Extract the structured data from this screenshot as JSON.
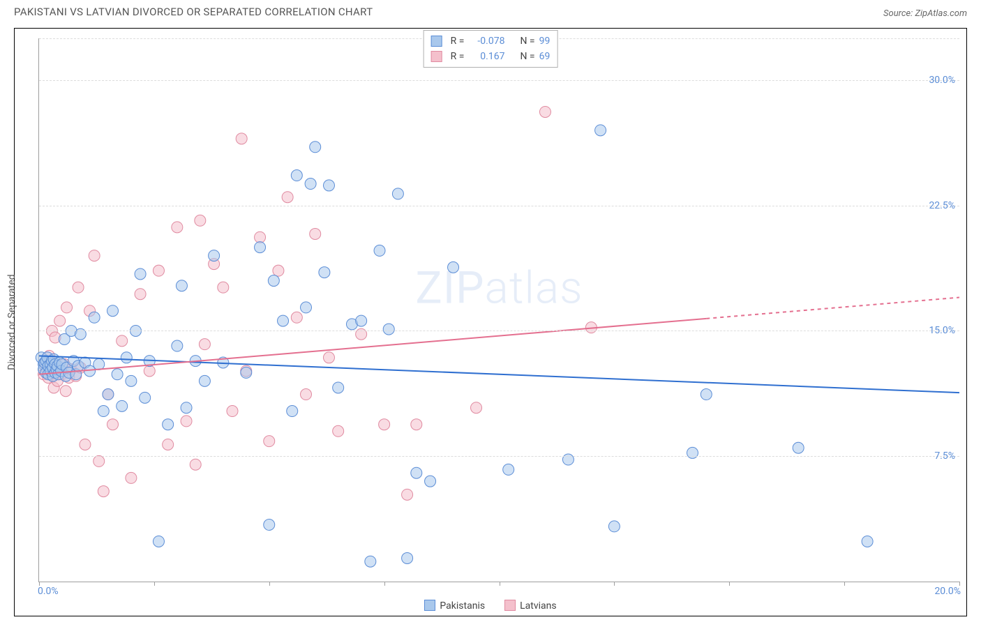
{
  "title": "PAKISTANI VS LATVIAN DIVORCED OR SEPARATED CORRELATION CHART",
  "source_prefix": "Source: ",
  "source_name": "ZipAtlas.com",
  "watermark_a": "ZIP",
  "watermark_b": "atlas",
  "chart": {
    "type": "scatter",
    "ylabel": "Divorced or Separated",
    "xlim": [
      0,
      20
    ],
    "ylim": [
      0,
      32.5
    ],
    "xtick_positions": [
      0,
      2.5,
      5,
      7.5,
      10,
      12.5,
      15,
      17.5,
      20
    ],
    "xlim_labels": {
      "left": "0.0%",
      "right": "20.0%"
    },
    "ytick_positions": [
      7.5,
      15,
      22.5,
      30
    ],
    "ytick_labels": [
      "7.5%",
      "15.0%",
      "22.5%",
      "30.0%"
    ],
    "grid_color": "#dcdcdc",
    "axis_color": "#9e9e9e",
    "background_color": "#ffffff",
    "point_radius": 8,
    "point_opacity": 0.55,
    "line_width": 2,
    "series": [
      {
        "name": "Pakistanis",
        "fill": "#a9c8ec",
        "stroke": "#5b8dd6",
        "line_color": "#2f6fd0",
        "r_label": "R =",
        "n_label": "N =",
        "r": "-0.078",
        "n": "99",
        "trend": {
          "y_at_x0": 13.5,
          "y_at_xmax": 11.3
        },
        "points": [
          [
            0.05,
            13.4
          ],
          [
            0.1,
            13.0
          ],
          [
            0.1,
            12.7
          ],
          [
            0.12,
            13.1
          ],
          [
            0.15,
            13.2
          ],
          [
            0.15,
            12.5
          ],
          [
            0.18,
            13.4
          ],
          [
            0.2,
            12.4
          ],
          [
            0.2,
            12.9
          ],
          [
            0.25,
            13.0
          ],
          [
            0.25,
            12.6
          ],
          [
            0.28,
            13.2
          ],
          [
            0.3,
            12.8
          ],
          [
            0.3,
            12.3
          ],
          [
            0.32,
            13.3
          ],
          [
            0.35,
            12.5
          ],
          [
            0.35,
            13.0
          ],
          [
            0.38,
            12.7
          ],
          [
            0.4,
            12.9
          ],
          [
            0.42,
            12.4
          ],
          [
            0.45,
            13.1
          ],
          [
            0.48,
            12.6
          ],
          [
            0.5,
            13.0
          ],
          [
            0.55,
            14.5
          ],
          [
            0.58,
            12.3
          ],
          [
            0.6,
            12.8
          ],
          [
            0.65,
            12.5
          ],
          [
            0.7,
            15.0
          ],
          [
            0.75,
            13.2
          ],
          [
            0.8,
            12.4
          ],
          [
            0.85,
            12.9
          ],
          [
            0.9,
            14.8
          ],
          [
            1.0,
            13.1
          ],
          [
            1.1,
            12.6
          ],
          [
            1.2,
            15.8
          ],
          [
            1.3,
            13.0
          ],
          [
            1.4,
            10.2
          ],
          [
            1.5,
            11.2
          ],
          [
            1.6,
            16.2
          ],
          [
            1.7,
            12.4
          ],
          [
            1.8,
            10.5
          ],
          [
            1.9,
            13.4
          ],
          [
            2.0,
            12.0
          ],
          [
            2.1,
            15.0
          ],
          [
            2.2,
            18.4
          ],
          [
            2.3,
            11.0
          ],
          [
            2.4,
            13.2
          ],
          [
            2.6,
            2.4
          ],
          [
            2.8,
            9.4
          ],
          [
            3.0,
            14.1
          ],
          [
            3.1,
            17.7
          ],
          [
            3.2,
            10.4
          ],
          [
            3.4,
            13.2
          ],
          [
            3.6,
            12.0
          ],
          [
            3.8,
            19.5
          ],
          [
            4.0,
            13.1
          ],
          [
            4.5,
            12.5
          ],
          [
            4.8,
            20.0
          ],
          [
            5.0,
            3.4
          ],
          [
            5.1,
            18.0
          ],
          [
            5.3,
            15.6
          ],
          [
            5.5,
            10.2
          ],
          [
            5.6,
            24.3
          ],
          [
            5.8,
            16.4
          ],
          [
            5.9,
            23.8
          ],
          [
            6.0,
            26.0
          ],
          [
            6.2,
            18.5
          ],
          [
            6.3,
            23.7
          ],
          [
            6.5,
            11.6
          ],
          [
            6.8,
            15.4
          ],
          [
            7.0,
            15.6
          ],
          [
            7.2,
            1.2
          ],
          [
            7.4,
            19.8
          ],
          [
            7.6,
            15.1
          ],
          [
            7.8,
            23.2
          ],
          [
            8.0,
            1.4
          ],
          [
            8.2,
            6.5
          ],
          [
            8.5,
            6.0
          ],
          [
            9.0,
            18.8
          ],
          [
            10.2,
            6.7
          ],
          [
            11.5,
            7.3
          ],
          [
            12.2,
            27.0
          ],
          [
            12.5,
            3.3
          ],
          [
            14.2,
            7.7
          ],
          [
            14.5,
            11.2
          ],
          [
            16.5,
            8.0
          ],
          [
            18.0,
            2.4
          ]
        ]
      },
      {
        "name": "Latvians",
        "fill": "#f4c0cc",
        "stroke": "#e08aa0",
        "line_color": "#e46f8f",
        "r_label": "R =",
        "n_label": "N =",
        "r": "0.167",
        "n": "69",
        "trend": {
          "y_at_x0": 12.4,
          "y_at_xmax": 17.0
        },
        "trend_dash_after_x": 14.5,
        "points": [
          [
            0.1,
            12.4
          ],
          [
            0.15,
            12.8
          ],
          [
            0.2,
            12.2
          ],
          [
            0.22,
            13.5
          ],
          [
            0.25,
            12.6
          ],
          [
            0.28,
            15.0
          ],
          [
            0.3,
            12.3
          ],
          [
            0.32,
            11.6
          ],
          [
            0.35,
            14.6
          ],
          [
            0.38,
            12.5
          ],
          [
            0.4,
            12.0
          ],
          [
            0.45,
            15.6
          ],
          [
            0.5,
            12.4
          ],
          [
            0.55,
            13.0
          ],
          [
            0.58,
            11.4
          ],
          [
            0.6,
            16.4
          ],
          [
            0.65,
            12.2
          ],
          [
            0.7,
            12.7
          ],
          [
            0.8,
            12.3
          ],
          [
            0.85,
            17.6
          ],
          [
            0.9,
            12.8
          ],
          [
            1.0,
            8.2
          ],
          [
            1.1,
            16.2
          ],
          [
            1.2,
            19.5
          ],
          [
            1.3,
            7.2
          ],
          [
            1.4,
            5.4
          ],
          [
            1.5,
            11.2
          ],
          [
            1.6,
            9.4
          ],
          [
            1.8,
            14.4
          ],
          [
            2.0,
            6.2
          ],
          [
            2.2,
            17.2
          ],
          [
            2.4,
            12.6
          ],
          [
            2.6,
            18.6
          ],
          [
            2.8,
            8.2
          ],
          [
            3.0,
            21.2
          ],
          [
            3.2,
            9.6
          ],
          [
            3.4,
            7.0
          ],
          [
            3.5,
            21.6
          ],
          [
            3.6,
            14.2
          ],
          [
            3.8,
            19.0
          ],
          [
            4.0,
            17.6
          ],
          [
            4.2,
            10.2
          ],
          [
            4.4,
            26.5
          ],
          [
            4.5,
            12.6
          ],
          [
            4.8,
            20.6
          ],
          [
            5.0,
            8.4
          ],
          [
            5.2,
            18.6
          ],
          [
            5.4,
            23.0
          ],
          [
            5.6,
            15.8
          ],
          [
            5.8,
            11.2
          ],
          [
            6.0,
            20.8
          ],
          [
            6.3,
            13.4
          ],
          [
            6.5,
            9.0
          ],
          [
            7.0,
            14.8
          ],
          [
            7.5,
            9.4
          ],
          [
            8.0,
            5.2
          ],
          [
            8.2,
            9.4
          ],
          [
            9.5,
            10.4
          ],
          [
            11.0,
            28.1
          ],
          [
            12.0,
            15.2
          ]
        ]
      }
    ]
  }
}
